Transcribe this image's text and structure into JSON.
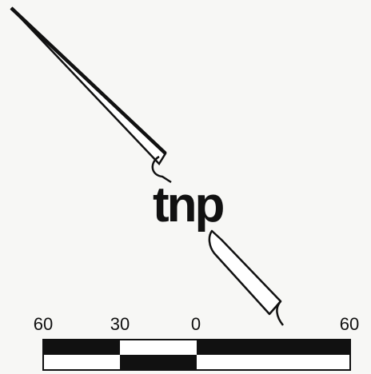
{
  "diagram": {
    "center_label": "tnp",
    "scale_labels": [
      "60",
      "30",
      "0",
      "60"
    ],
    "colors": {
      "ink": "#111111",
      "paper": "#f7f7f5",
      "light": "#ffffff"
    }
  }
}
